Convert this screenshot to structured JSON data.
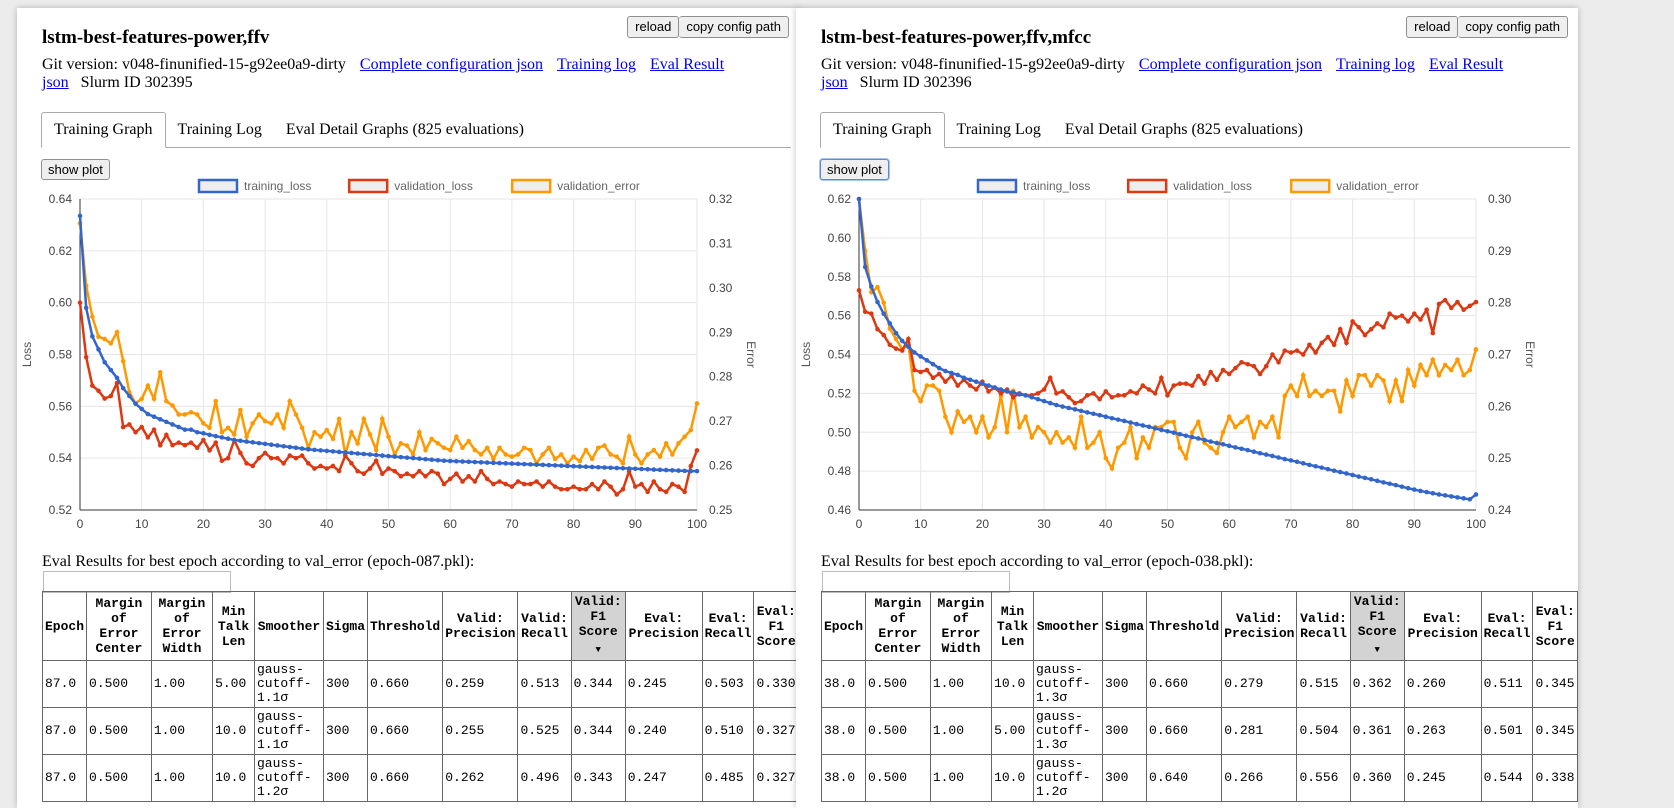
{
  "common": {
    "reload_label": "reload",
    "copy_label": "copy config path",
    "git_prefix": "Git version: v048-finunified-15-g92ee0a9-dirty",
    "link_config": "Complete configuration json",
    "link_log": "Training log",
    "link_eval": "Eval Result json",
    "slurm_prefix": "Slurm ID",
    "tabs": [
      "Training Graph",
      "Training Log",
      "Eval Detail Graphs (825 evaluations)"
    ],
    "show_plot": "show plot",
    "legend": [
      "training_loss",
      "validation_loss",
      "validation_error"
    ],
    "y_left_label": "Loss",
    "y_right_label": "Error",
    "headers": [
      "Epoch",
      "Margin of Error Center",
      "Margin of Error Width",
      "Min Talk Len",
      "Smoother",
      "Sigma",
      "Threshold",
      "Valid: Precision",
      "Valid: Recall",
      "Valid: F1 Score",
      "Eval: Precision",
      "Eval: Recall",
      "Eval: F1 Score"
    ],
    "sort_indicator": "▼",
    "colors": {
      "training_loss": "#3366cc",
      "validation_loss": "#dc3912",
      "validation_error": "#ff9900"
    }
  },
  "panels": [
    {
      "title": "lstm-best-features-power,ffv",
      "slurm_id": "302395",
      "eval_heading": "Eval Results for best epoch according to val_error (epoch-087.pkl):",
      "rows": [
        [
          "87.0",
          "0.500",
          "1.00",
          "5.00",
          "gauss-cutoff-1.1σ",
          "300",
          "0.660",
          "0.259",
          "0.513",
          "0.344",
          "0.245",
          "0.503",
          "0.330"
        ],
        [
          "87.0",
          "0.500",
          "1.00",
          "10.0",
          "gauss-cutoff-1.1σ",
          "300",
          "0.660",
          "0.255",
          "0.525",
          "0.344",
          "0.240",
          "0.510",
          "0.327"
        ],
        [
          "87.0",
          "0.500",
          "1.00",
          "10.0",
          "gauss-cutoff-1.2σ",
          "300",
          "0.660",
          "0.262",
          "0.496",
          "0.343",
          "0.247",
          "0.485",
          "0.327"
        ]
      ],
      "chart_data": {
        "type": "line",
        "xlim": [
          0,
          100
        ],
        "x_ticks": [
          0,
          10,
          20,
          30,
          40,
          50,
          60,
          70,
          80,
          90,
          100
        ],
        "ylim_left": [
          0.52,
          0.64
        ],
        "y_ticks_left": [
          0.52,
          0.54,
          0.56,
          0.58,
          0.6,
          0.62,
          0.64
        ],
        "ylim_right": [
          0.25,
          0.32
        ],
        "y_ticks_right": [
          0.25,
          0.26,
          0.27,
          0.28,
          0.29,
          0.3,
          0.31,
          0.32
        ],
        "xlabel": "",
        "ylabel": "Loss",
        "y2label": "Error",
        "legend_position": "top",
        "grid": true,
        "series": [
          {
            "name": "training_loss",
            "axis": "left",
            "values": [
              0.6335,
              0.598,
              0.587,
              0.582,
              0.577,
              0.574,
              0.571,
              0.567,
              0.564,
              0.561,
              0.559,
              0.557,
              0.556,
              0.555,
              0.554,
              0.553,
              0.552,
              0.551,
              0.551,
              0.55,
              0.5496,
              0.549,
              0.5485,
              0.548,
              0.5475,
              0.547,
              0.5467,
              0.5464,
              0.5461,
              0.5458,
              0.5455,
              0.5452,
              0.5449,
              0.5446,
              0.5443,
              0.544,
              0.5437,
              0.5434,
              0.5432,
              0.543,
              0.5428,
              0.5426,
              0.5424,
              0.5422,
              0.542,
              0.5418,
              0.5416,
              0.5414,
              0.5412,
              0.541,
              0.5408,
              0.5406,
              0.5404,
              0.5402,
              0.54,
              0.5398,
              0.5396,
              0.5394,
              0.5392,
              0.539,
              0.5389,
              0.5388,
              0.5387,
              0.5386,
              0.5385,
              0.5384,
              0.5383,
              0.5382,
              0.5381,
              0.538,
              0.5379,
              0.5378,
              0.5377,
              0.5376,
              0.5375,
              0.5374,
              0.5373,
              0.5372,
              0.5371,
              0.537,
              0.5369,
              0.5368,
              0.5367,
              0.5366,
              0.5365,
              0.5364,
              0.5363,
              0.5362,
              0.5361,
              0.536,
              0.5359,
              0.5358,
              0.5357,
              0.5356,
              0.5355,
              0.5354,
              0.5353,
              0.5352,
              0.5351,
              0.535,
              0.535
            ]
          },
          {
            "name": "validation_loss",
            "axis": "left",
            "values": [
              0.6,
              0.579,
              0.568,
              0.566,
              0.563,
              0.564,
              0.569,
              0.552,
              0.553,
              0.55,
              0.552,
              0.548,
              0.551,
              0.545,
              0.549,
              0.545,
              0.546,
              0.545,
              0.546,
              0.544,
              0.547,
              0.543,
              0.546,
              0.539,
              0.54,
              0.547,
              0.542,
              0.538,
              0.537,
              0.54,
              0.542,
              0.54,
              0.54,
              0.538,
              0.541,
              0.54,
              0.541,
              0.538,
              0.536,
              0.537,
              0.536,
              0.537,
              0.535,
              0.541,
              0.538,
              0.535,
              0.534,
              0.536,
              0.539,
              0.534,
              0.536,
              0.535,
              0.533,
              0.534,
              0.533,
              0.535,
              0.533,
              0.535,
              0.534,
              0.53,
              0.532,
              0.534,
              0.531,
              0.533,
              0.531,
              0.535,
              0.532,
              0.53,
              0.531,
              0.53,
              0.529,
              0.531,
              0.53,
              0.53,
              0.531,
              0.529,
              0.531,
              0.529,
              0.528,
              0.528,
              0.529,
              0.528,
              0.528,
              0.53,
              0.528,
              0.531,
              0.529,
              0.526,
              0.528,
              0.535,
              0.529,
              0.53,
              0.527,
              0.531,
              0.528,
              0.527,
              0.53,
              0.529,
              0.527,
              0.537,
              0.543
            ]
          },
          {
            "name": "validation_error",
            "axis": "right",
            "values": [
              0.3145,
              0.3005,
              0.2935,
              0.289,
              0.2885,
              0.2875,
              0.29,
              0.2835,
              0.2765,
              0.274,
              0.275,
              0.278,
              0.275,
              0.281,
              0.2745,
              0.2735,
              0.2715,
              0.2715,
              0.272,
              0.2715,
              0.2695,
              0.2685,
              0.2745,
              0.2675,
              0.2685,
              0.267,
              0.2725,
              0.2665,
              0.2695,
              0.2715,
              0.27,
              0.2695,
              0.2715,
              0.2685,
              0.2745,
              0.2715,
              0.2685,
              0.264,
              0.2675,
              0.2665,
              0.268,
              0.266,
              0.2705,
              0.2625,
              0.2675,
              0.265,
              0.2705,
              0.267,
              0.2635,
              0.2705,
              0.2665,
              0.2625,
              0.265,
              0.2645,
              0.2625,
              0.2675,
              0.2635,
              0.266,
              0.265,
              0.264,
              0.2635,
              0.2665,
              0.264,
              0.2655,
              0.2635,
              0.2625,
              0.264,
              0.2615,
              0.264,
              0.2625,
              0.262,
              0.2625,
              0.264,
              0.2635,
              0.2605,
              0.2625,
              0.264,
              0.2615,
              0.2625,
              0.2605,
              0.262,
              0.261,
              0.2635,
              0.2615,
              0.264,
              0.2645,
              0.2625,
              0.262,
              0.2605,
              0.2665,
              0.2625,
              0.2605,
              0.2625,
              0.2635,
              0.262,
              0.265,
              0.2625,
              0.265,
              0.2665,
              0.268,
              0.274
            ]
          }
        ]
      }
    },
    {
      "title": "lstm-best-features-power,ffv,mfcc",
      "slurm_id": "302396",
      "eval_heading": "Eval Results for best epoch according to val_error (epoch-038.pkl):",
      "rows": [
        [
          "38.0",
          "0.500",
          "1.00",
          "10.0",
          "gauss-cutoff-1.3σ",
          "300",
          "0.660",
          "0.279",
          "0.515",
          "0.362",
          "0.260",
          "0.511",
          "0.345"
        ],
        [
          "38.0",
          "0.500",
          "1.00",
          "5.00",
          "gauss-cutoff-1.3σ",
          "300",
          "0.660",
          "0.281",
          "0.504",
          "0.361",
          "0.263",
          "0.501",
          "0.345"
        ],
        [
          "38.0",
          "0.500",
          "1.00",
          "10.0",
          "gauss-cutoff-1.2σ",
          "300",
          "0.640",
          "0.266",
          "0.556",
          "0.360",
          "0.245",
          "0.544",
          "0.338"
        ]
      ],
      "chart_data": {
        "type": "line",
        "xlim": [
          0,
          100
        ],
        "x_ticks": [
          0,
          10,
          20,
          30,
          40,
          50,
          60,
          70,
          80,
          90,
          100
        ],
        "ylim_left": [
          0.46,
          0.62
        ],
        "y_ticks_left": [
          0.46,
          0.48,
          0.5,
          0.52,
          0.54,
          0.56,
          0.58,
          0.6,
          0.62
        ],
        "ylim_right": [
          0.24,
          0.3
        ],
        "y_ticks_right": [
          0.24,
          0.25,
          0.26,
          0.27,
          0.28,
          0.29,
          0.3
        ],
        "xlabel": "",
        "ylabel": "Loss",
        "y2label": "Error",
        "legend_position": "top",
        "grid": true,
        "series": [
          {
            "name": "training_loss",
            "axis": "left",
            "values": [
              0.62,
              0.585,
              0.575,
              0.567,
              0.561,
              0.556,
              0.551,
              0.547,
              0.544,
              0.541,
              0.539,
              0.537,
              0.535,
              0.533,
              0.5315,
              0.5305,
              0.5295,
              0.528,
              0.527,
              0.526,
              0.525,
              0.524,
              0.523,
              0.522,
              0.521,
              0.5205,
              0.5195,
              0.519,
              0.518,
              0.517,
              0.516,
              0.515,
              0.514,
              0.5132,
              0.5125,
              0.5118,
              0.511,
              0.5102,
              0.5095,
              0.5088,
              0.508,
              0.5072,
              0.5065,
              0.5058,
              0.505,
              0.5042,
              0.5035,
              0.5028,
              0.502,
              0.5012,
              0.5005,
              0.4998,
              0.499,
              0.4982,
              0.4975,
              0.4968,
              0.496,
              0.4952,
              0.4945,
              0.4938,
              0.493,
              0.4922,
              0.4915,
              0.4908,
              0.49,
              0.4892,
              0.4885,
              0.4878,
              0.487,
              0.4862,
              0.4855,
              0.4848,
              0.484,
              0.4832,
              0.4825,
              0.4818,
              0.481,
              0.4802,
              0.4795,
              0.4788,
              0.478,
              0.4772,
              0.4765,
              0.4758,
              0.475,
              0.4742,
              0.4735,
              0.4728,
              0.472,
              0.4712,
              0.4705,
              0.4698,
              0.4692,
              0.4686,
              0.468,
              0.4675,
              0.467,
              0.4665,
              0.466,
              0.4655,
              0.468
            ]
          },
          {
            "name": "validation_loss",
            "axis": "left",
            "values": [
              0.573,
              0.562,
              0.561,
              0.553,
              0.55,
              0.545,
              0.543,
              0.542,
              0.548,
              0.532,
              0.531,
              0.532,
              0.528,
              0.53,
              0.526,
              0.529,
              0.524,
              0.527,
              0.524,
              0.522,
              0.526,
              0.521,
              0.523,
              0.52,
              0.522,
              0.518,
              0.52,
              0.519,
              0.519,
              0.52,
              0.522,
              0.528,
              0.52,
              0.521,
              0.518,
              0.515,
              0.516,
              0.519,
              0.52,
              0.517,
              0.521,
              0.518,
              0.519,
              0.519,
              0.521,
              0.52,
              0.524,
              0.522,
              0.52,
              0.528,
              0.519,
              0.524,
              0.525,
              0.525,
              0.524,
              0.529,
              0.525,
              0.531,
              0.527,
              0.532,
              0.53,
              0.533,
              0.536,
              0.535,
              0.534,
              0.53,
              0.534,
              0.54,
              0.536,
              0.542,
              0.541,
              0.542,
              0.54,
              0.545,
              0.541,
              0.546,
              0.549,
              0.545,
              0.553,
              0.546,
              0.557,
              0.554,
              0.55,
              0.553,
              0.556,
              0.554,
              0.561,
              0.559,
              0.56,
              0.557,
              0.561,
              0.558,
              0.563,
              0.551,
              0.566,
              0.568,
              0.564,
              0.567,
              0.563,
              0.565,
              0.567
            ]
          },
          {
            "name": "validation_error",
            "axis": "right",
            "values": [
              0.3,
              0.29,
              0.282,
              0.283,
              0.28,
              0.275,
              0.273,
              0.271,
              0.272,
              0.263,
              0.261,
              0.264,
              0.264,
              0.263,
              0.258,
              0.255,
              0.259,
              0.257,
              0.258,
              0.255,
              0.258,
              0.254,
              0.256,
              0.262,
              0.255,
              0.263,
              0.256,
              0.258,
              0.254,
              0.256,
              0.255,
              0.253,
              0.255,
              0.253,
              0.254,
              0.252,
              0.258,
              0.252,
              0.253,
              0.255,
              0.25,
              0.248,
              0.252,
              0.253,
              0.256,
              0.25,
              0.254,
              0.252,
              0.256,
              0.256,
              0.257,
              0.257,
              0.252,
              0.25,
              0.255,
              0.257,
              0.253,
              0.252,
              0.251,
              0.255,
              0.258,
              0.256,
              0.257,
              0.258,
              0.254,
              0.257,
              0.256,
              0.258,
              0.254,
              0.262,
              0.264,
              0.262,
              0.266,
              0.262,
              0.263,
              0.262,
              0.263,
              0.263,
              0.259,
              0.265,
              0.262,
              0.266,
              0.266,
              0.264,
              0.266,
              0.265,
              0.261,
              0.265,
              0.261,
              0.267,
              0.264,
              0.268,
              0.266,
              0.269,
              0.266,
              0.268,
              0.267,
              0.269,
              0.266,
              0.267,
              0.271
            ]
          }
        ]
      }
    }
  ]
}
